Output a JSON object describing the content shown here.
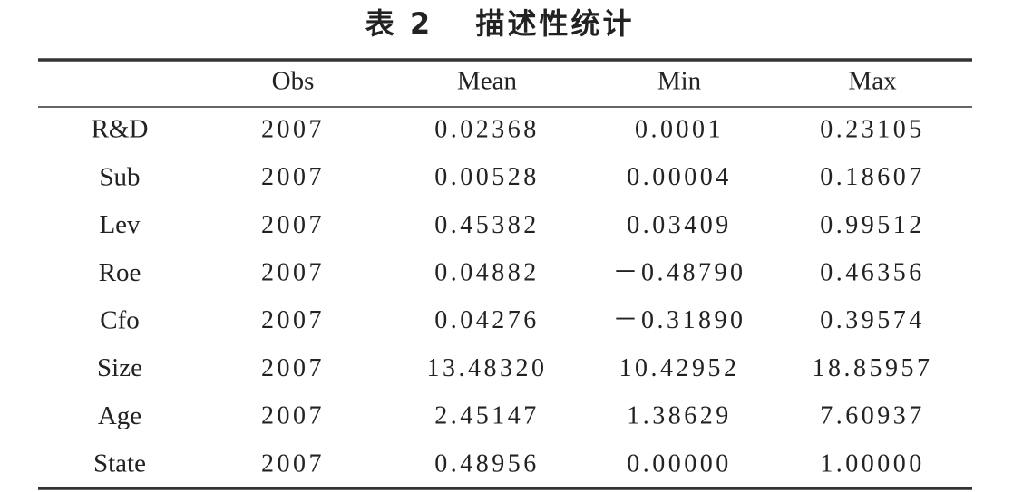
{
  "table": {
    "label": "表 2",
    "title": "描述性统计",
    "header": [
      "",
      "Obs",
      "Mean",
      "Min",
      "Max"
    ],
    "rows": [
      [
        "R&D",
        "2007",
        "0.02368",
        "0.0001",
        "0.23105"
      ],
      [
        "Sub",
        "2007",
        "0.00528",
        "0.00004",
        "0.18607"
      ],
      [
        "Lev",
        "2007",
        "0.45382",
        "0.03409",
        "0.99512"
      ],
      [
        "Roe",
        "2007",
        "0.04882",
        "－0.48790",
        "0.46356"
      ],
      [
        "Cfo",
        "2007",
        "0.04276",
        "－0.31890",
        "0.39574"
      ],
      [
        "Size",
        "2007",
        "13.48320",
        "10.42952",
        "18.85957"
      ],
      [
        "Age",
        "2007",
        "2.45147",
        "1.38629",
        "7.60937"
      ],
      [
        "State",
        "2007",
        "0.48956",
        "0.00000",
        "1.00000"
      ]
    ]
  }
}
